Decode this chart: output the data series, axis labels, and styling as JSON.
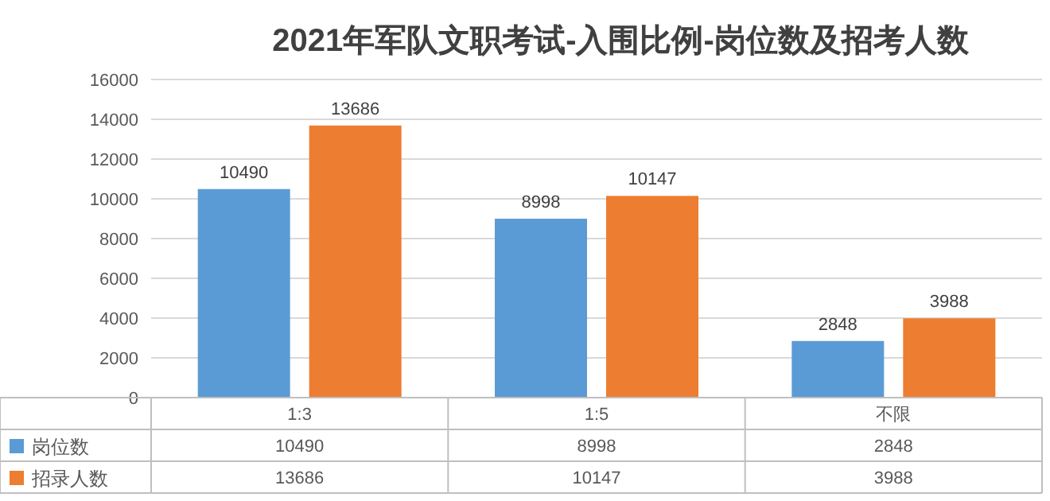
{
  "chart_data": {
    "type": "bar",
    "title": "2021年军队文职考试-入围比例-岗位数及招考人数",
    "categories": [
      "1:3",
      "1:5",
      "不限"
    ],
    "series": [
      {
        "name": "岗位数",
        "color": "#5b9bd5",
        "values": [
          10490,
          8998,
          2848
        ],
        "value_labels": [
          "10490",
          "8998",
          "2848"
        ]
      },
      {
        "name": "招录人数",
        "color": "#ed7d31",
        "values": [
          13686,
          10147,
          3988
        ],
        "value_labels": [
          "13686",
          "10147",
          "3988"
        ]
      }
    ],
    "ylim": [
      0,
      16000
    ],
    "yticks": [
      0,
      2000,
      4000,
      6000,
      8000,
      10000,
      12000,
      14000,
      16000
    ],
    "annotations": [
      "10490",
      "8998",
      "2848",
      "13686",
      "10147",
      "3988"
    ],
    "grid": "y",
    "legend": "bottom",
    "data_labels": true
  }
}
